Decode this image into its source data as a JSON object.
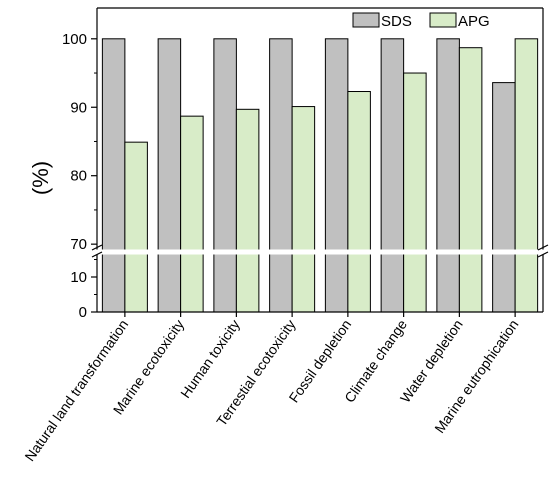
{
  "chart_data": {
    "type": "bar",
    "title": "",
    "xlabel": "",
    "ylabel": "(%)",
    "categories": [
      "Natural land transformation",
      "Marine ecotoxicity",
      "Human toxicity",
      "Terrestial ecotoxicity",
      "Fossil depletion",
      "Climate change",
      "Water depletion",
      "Marine eutrophication"
    ],
    "series": [
      {
        "name": "SDS",
        "color": "#c0c0c0",
        "values": [
          100,
          100,
          100,
          100,
          100,
          100,
          100,
          93.6
        ]
      },
      {
        "name": "APG",
        "color": "#d8ecc8",
        "values": [
          84.9,
          88.7,
          89.7,
          90.1,
          92.3,
          95.0,
          98.7,
          100
        ]
      }
    ],
    "y_axis": {
      "broken": true,
      "lower_segment": {
        "ylim": [
          0,
          16
        ],
        "ticks": [
          0,
          10
        ]
      },
      "upper_segment": {
        "ylim": [
          69,
          104.5
        ],
        "ticks": [
          70,
          80,
          90,
          100
        ]
      }
    },
    "legend": {
      "placement": "top-right"
    },
    "grid": false
  }
}
